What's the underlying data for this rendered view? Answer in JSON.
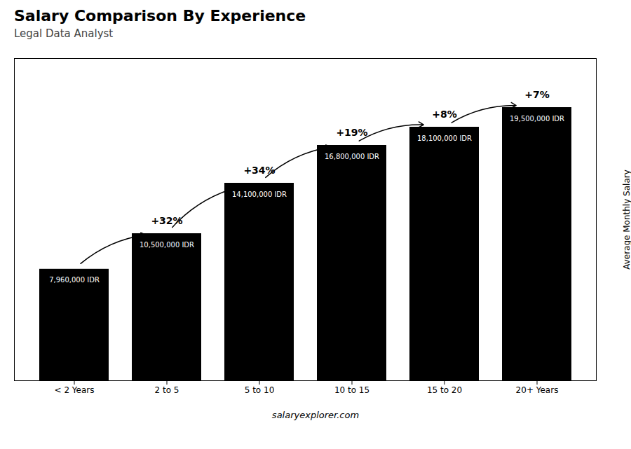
{
  "chart_data": {
    "type": "bar",
    "title": "Salary Comparison By Experience",
    "subtitle": "Legal Data Analyst",
    "ylabel": "Average Monthly Salary",
    "caption": "salaryexplorer.com",
    "categories": [
      "< 2 Years",
      "2 to 5",
      "5 to 10",
      "10 to 15",
      "15 to 20",
      "20+ Years"
    ],
    "values": [
      7960000,
      10500000,
      14100000,
      16800000,
      18100000,
      19500000
    ],
    "value_labels": [
      "7,960,000 IDR",
      "10,500,000 IDR",
      "14,100,000 IDR",
      "16,800,000 IDR",
      "18,100,000 IDR",
      "19,500,000 IDR"
    ],
    "pct_changes": [
      null,
      "+32%",
      "+34%",
      "+19%",
      "+8%",
      "+7%"
    ],
    "data_labels": true,
    "ylim": [
      0,
      23000000
    ],
    "yticks": [],
    "tick_labels": "x",
    "grid": false
  }
}
